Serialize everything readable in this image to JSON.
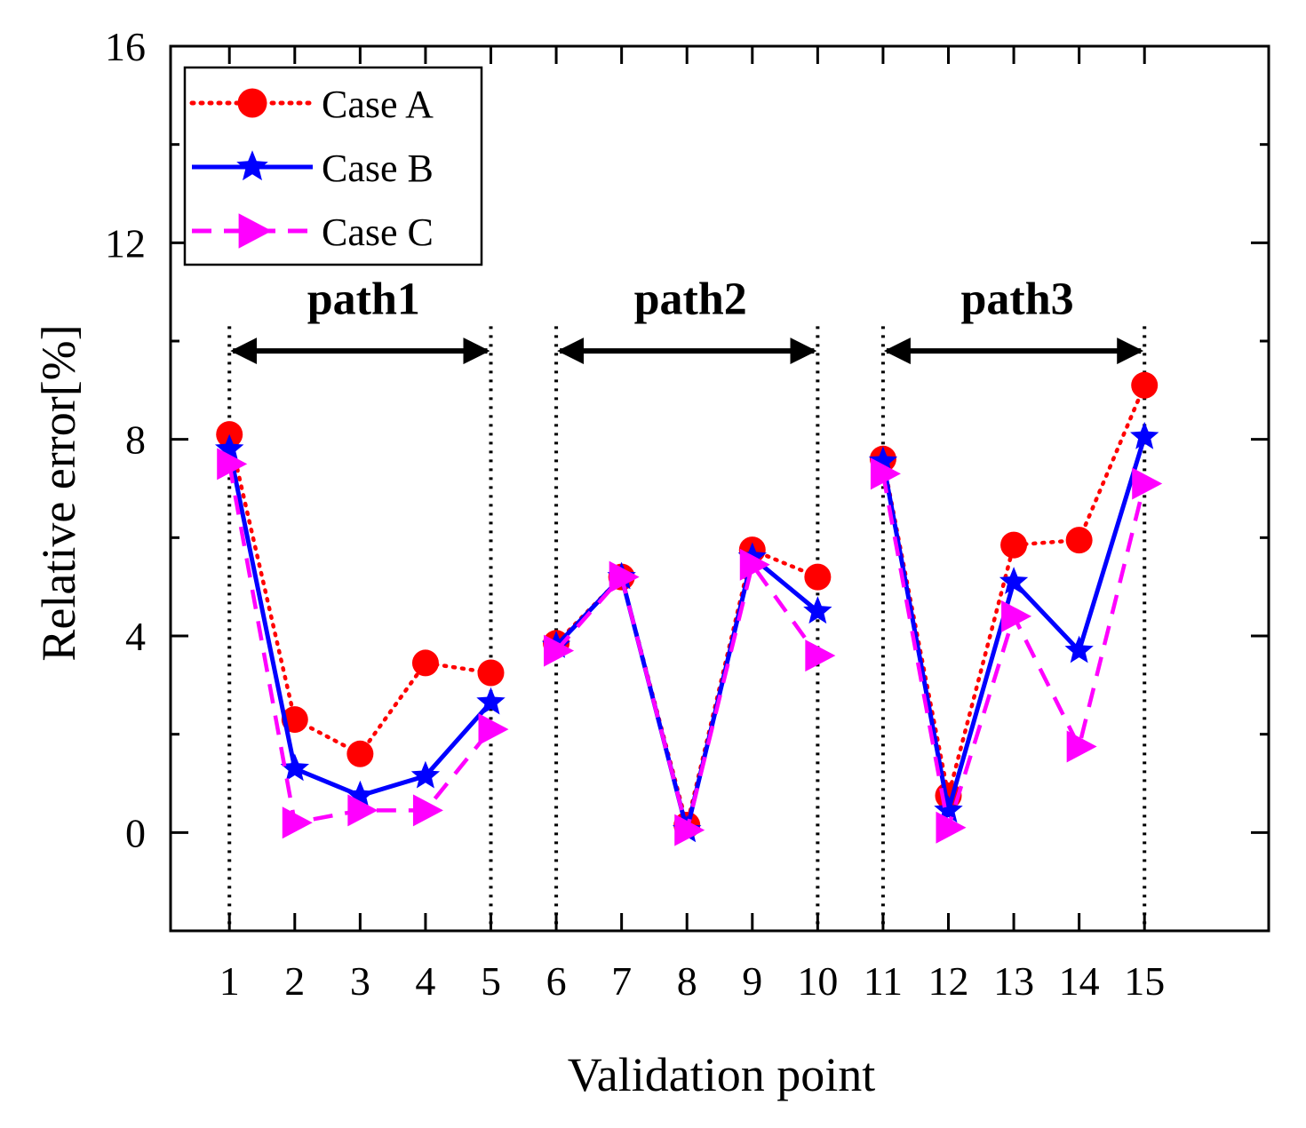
{
  "chart_data": {
    "type": "line",
    "xlabel": "Validation point",
    "ylabel": "Relative error[%]",
    "xlim": [
      0.1,
      16.9
    ],
    "ylim": [
      -2,
      16
    ],
    "x": [
      1,
      2,
      3,
      4,
      5,
      6,
      7,
      8,
      9,
      10,
      11,
      12,
      13,
      14,
      15
    ],
    "x_tick_labels": [
      "1",
      "2",
      "3",
      "4",
      "5",
      "6",
      "7",
      "8",
      "9",
      "10",
      "11",
      "12",
      "13",
      "14",
      "15"
    ],
    "y_ticks": [
      0,
      4,
      8,
      12,
      16
    ],
    "y_tick_labels": [
      "0",
      "4",
      "8",
      "12",
      "16"
    ],
    "legend_position": "top-left",
    "series": [
      {
        "name": "Case A",
        "color": "#ff0000",
        "line_style": "dotted",
        "marker": "circle",
        "values": [
          8.1,
          2.3,
          1.6,
          3.45,
          3.25,
          3.85,
          5.2,
          0.15,
          5.75,
          5.2,
          7.6,
          0.75,
          5.85,
          5.95,
          9.1
        ]
      },
      {
        "name": "Case B",
        "color": "#0000ff",
        "line_style": "solid",
        "marker": "star",
        "values": [
          7.8,
          1.3,
          0.75,
          1.15,
          2.65,
          3.8,
          5.2,
          0.05,
          5.6,
          4.5,
          7.55,
          0.45,
          5.1,
          3.7,
          8.05
        ]
      },
      {
        "name": "Case C",
        "color": "#ff00ff",
        "line_style": "dashed",
        "marker": "triangle-right",
        "values": [
          7.5,
          0.2,
          0.45,
          0.45,
          2.1,
          3.7,
          5.2,
          0.05,
          5.45,
          3.6,
          7.3,
          0.1,
          4.4,
          1.75,
          7.1
        ]
      }
    ],
    "segments": [
      {
        "label": "path1",
        "from": 1,
        "to": 5
      },
      {
        "label": "path2",
        "from": 6,
        "to": 10
      },
      {
        "label": "path3",
        "from": 11,
        "to": 15
      }
    ]
  }
}
